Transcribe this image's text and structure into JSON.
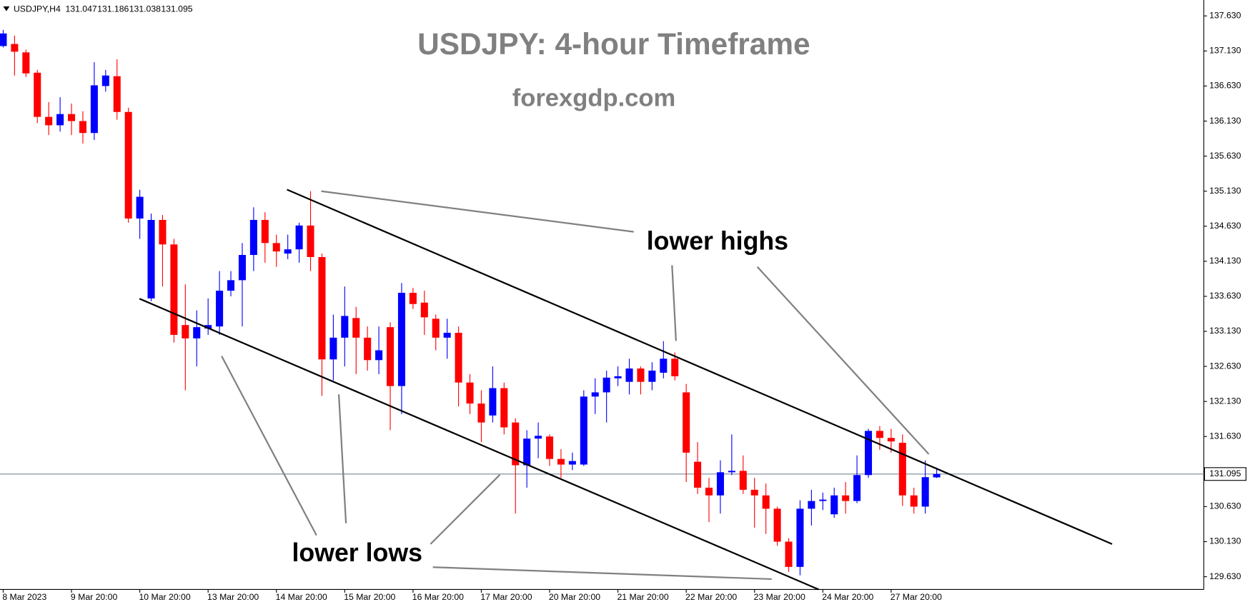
{
  "chart_data": {
    "type": "candlestick",
    "title": "USDJPY: 4-hour Timeframe",
    "subtitle": "forexgdp.com",
    "annotations": [
      "lower highs",
      "lower lows"
    ],
    "quote": {
      "symbol": "USDJPY,H4",
      "open": 131.047,
      "high": 131.186,
      "low": 131.038,
      "close": 131.095
    },
    "current_price": 131.095,
    "up_color": "#0000ff",
    "down_color": "#ff0000",
    "categories": [
      "8 Mar 2023",
      null,
      null,
      null,
      null,
      null,
      "9 Mar 20:00",
      null,
      null,
      null,
      null,
      null,
      "10 Mar 20:00",
      null,
      null,
      null,
      null,
      null,
      "13 Mar 20:00",
      null,
      null,
      null,
      null,
      null,
      "14 Mar 20:00",
      null,
      null,
      null,
      null,
      null,
      "15 Mar 20:00",
      null,
      null,
      null,
      null,
      null,
      "16 Mar 20:00",
      null,
      null,
      null,
      null,
      null,
      "17 Mar 20:00",
      null,
      null,
      null,
      null,
      null,
      "20 Mar 20:00",
      null,
      null,
      null,
      null,
      null,
      "21 Mar 20:00",
      null,
      null,
      null,
      null,
      null,
      "22 Mar 20:00",
      null,
      null,
      null,
      null,
      null,
      "23 Mar 20:00",
      null,
      null,
      null,
      null,
      null,
      "24 Mar 20:00",
      null,
      null,
      null,
      null,
      null,
      "27 Mar 20:00",
      null,
      null,
      null,
      null
    ],
    "open": [
      137.2,
      137.23,
      137.11,
      136.82,
      136.19,
      136.07,
      136.23,
      136.13,
      135.96,
      136.63,
      136.77,
      136.26,
      134.74,
      133.6,
      134.72,
      134.37,
      133.22,
      133.03,
      133.17,
      133.2,
      133.71,
      133.86,
      134.22,
      134.72,
      134.39,
      134.24,
      134.3,
      134.64,
      134.19,
      132.73,
      133.04,
      133.32,
      133.04,
      132.72,
      133.19,
      132.35,
      133.68,
      133.54,
      133.31,
      133.04,
      133.11,
      132.4,
      132.1,
      131.93,
      132.32,
      131.83,
      131.22,
      131.6,
      131.63,
      131.31,
      131.23,
      131.23,
      132.2,
      132.26,
      132.46,
      132.41,
      132.6,
      132.41,
      132.54,
      132.74,
      132.26,
      131.27,
      130.9,
      130.79,
      131.12,
      131.14,
      130.87,
      130.79,
      130.6,
      130.13,
      129.77,
      130.6,
      130.71,
      130.52,
      130.79,
      130.71,
      131.08,
      131.71,
      131.61,
      131.54,
      130.79,
      130.63,
      131.047
    ],
    "high": [
      137.43,
      137.35,
      137.15,
      136.86,
      136.4,
      136.47,
      136.38,
      136.27,
      136.97,
      136.86,
      137.01,
      136.32,
      135.15,
      134.81,
      134.79,
      134.45,
      133.8,
      133.43,
      133.6,
      133.99,
      133.99,
      134.39,
      134.9,
      134.83,
      134.51,
      134.51,
      134.68,
      135.13,
      134.24,
      133.37,
      133.77,
      133.48,
      133.2,
      133.2,
      133.26,
      133.82,
      133.75,
      133.71,
      133.37,
      133.31,
      133.2,
      132.52,
      132.29,
      132.63,
      132.4,
      131.89,
      131.72,
      131.83,
      131.66,
      131.45,
      131.4,
      132.29,
      132.46,
      132.57,
      132.63,
      132.74,
      132.63,
      132.69,
      132.99,
      132.83,
      132.38,
      131.55,
      131.04,
      131.29,
      131.66,
      131.36,
      131.04,
      130.96,
      130.63,
      130.18,
      130.72,
      130.87,
      130.83,
      130.9,
      130.98,
      131.36,
      131.74,
      131.78,
      131.74,
      131.66,
      130.9,
      131.29,
      131.186
    ],
    "low": [
      137.18,
      136.78,
      136.76,
      136.1,
      135.93,
      135.98,
      135.93,
      135.81,
      135.86,
      136.55,
      136.15,
      134.68,
      134.45,
      133.56,
      133.77,
      132.97,
      132.29,
      132.63,
      133.08,
      133.08,
      133.63,
      133.2,
      133.99,
      134.11,
      134.05,
      134.16,
      134.11,
      133.99,
      132.21,
      132.43,
      132.63,
      132.52,
      132.57,
      132.52,
      131.72,
      131.95,
      133.45,
      133.08,
      132.86,
      132.74,
      132.06,
      131.95,
      131.55,
      131.83,
      131.66,
      130.53,
      130.9,
      131.32,
      131.21,
      131.04,
      131.15,
      131.21,
      131.95,
      131.83,
      132.35,
      132.23,
      132.23,
      132.29,
      132.46,
      132.43,
      130.98,
      130.81,
      130.41,
      130.53,
      131.08,
      130.81,
      130.33,
      130.24,
      130.07,
      129.7,
      129.65,
      130.36,
      130.58,
      130.47,
      130.53,
      130.68,
      131.04,
      131.44,
      131.4,
      130.64,
      130.53,
      130.53,
      131.038
    ],
    "close": [
      137.38,
      137.12,
      136.81,
      136.19,
      136.07,
      136.23,
      136.13,
      135.96,
      136.64,
      136.78,
      136.26,
      134.74,
      135.05,
      134.72,
      134.37,
      133.08,
      133.03,
      133.19,
      133.22,
      133.71,
      133.86,
      134.22,
      134.72,
      134.39,
      134.27,
      134.3,
      134.64,
      134.19,
      132.73,
      133.04,
      133.35,
      133.04,
      132.72,
      132.86,
      132.35,
      133.68,
      133.52,
      133.33,
      133.04,
      133.11,
      132.4,
      132.1,
      131.83,
      132.32,
      131.76,
      131.22,
      131.6,
      131.64,
      131.31,
      131.23,
      131.28,
      132.2,
      132.26,
      132.47,
      132.49,
      132.6,
      132.41,
      132.57,
      132.74,
      132.49,
      131.4,
      130.9,
      130.79,
      131.12,
      131.14,
      130.87,
      130.79,
      130.6,
      130.13,
      129.77,
      130.6,
      130.71,
      130.73,
      130.79,
      130.71,
      131.08,
      131.71,
      131.61,
      131.56,
      130.79,
      130.63,
      131.05,
      131.095
    ],
    "ylim": [
      129.448,
      137.857
    ],
    "yticks": [
      {
        "value": 137.63,
        "label": "137.630"
      },
      {
        "value": 137.13,
        "label": "137.130"
      },
      {
        "value": 136.63,
        "label": "136.630"
      },
      {
        "value": 136.13,
        "label": "136.130"
      },
      {
        "value": 135.63,
        "label": "135.630"
      },
      {
        "value": 135.13,
        "label": "135.130"
      },
      {
        "value": 134.63,
        "label": "134.630"
      },
      {
        "value": 134.13,
        "label": "134.130"
      },
      {
        "value": 133.63,
        "label": "133.630"
      },
      {
        "value": 133.13,
        "label": "133.130"
      },
      {
        "value": 132.63,
        "label": "132.630"
      },
      {
        "value": 132.13,
        "label": "132.130"
      },
      {
        "value": 131.63,
        "label": "131.630"
      },
      {
        "value": 131.13,
        "label": "131.130"
      },
      {
        "value": 130.63,
        "label": "130.630"
      },
      {
        "value": 130.13,
        "label": "130.130"
      },
      {
        "value": 129.63,
        "label": "129.630"
      }
    ]
  }
}
